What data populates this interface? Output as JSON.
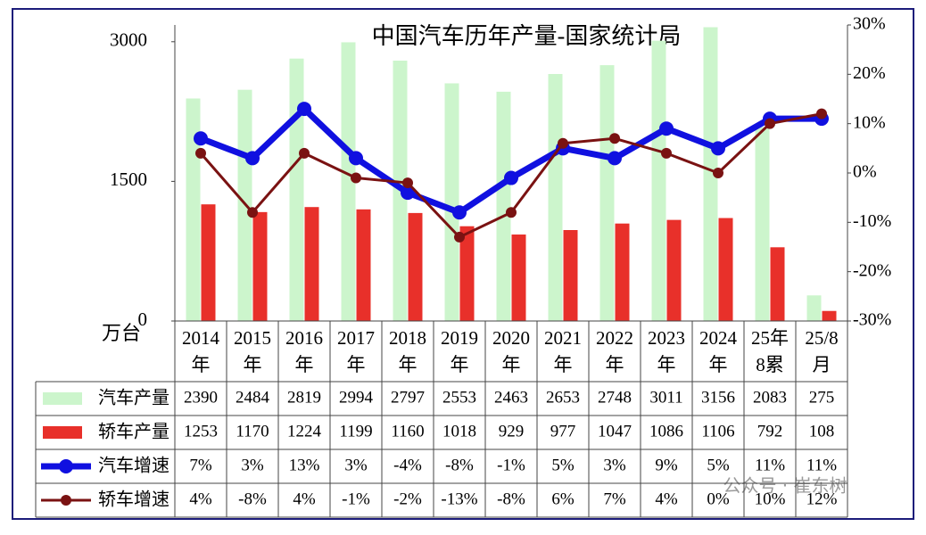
{
  "chart_data": {
    "type": "bar",
    "title": "中国汽车历年产量-国家统计局",
    "y_unit": "万台",
    "watermark": "公众号 · 崔东树",
    "categories": [
      [
        "2014",
        "年"
      ],
      [
        "2015",
        "年"
      ],
      [
        "2016",
        "年"
      ],
      [
        "2017",
        "年"
      ],
      [
        "2018",
        "年"
      ],
      [
        "2019",
        "年"
      ],
      [
        "2020",
        "年"
      ],
      [
        "2021",
        "年"
      ],
      [
        "2022",
        "年"
      ],
      [
        "2023",
        "年"
      ],
      [
        "2024",
        "年"
      ],
      [
        "25年",
        "8累"
      ],
      [
        "25/8",
        "月"
      ]
    ],
    "ylim": [
      0,
      3180
    ],
    "yticks": [
      0,
      1500,
      3000
    ],
    "y2lim": [
      -30,
      30
    ],
    "y2ticks": [
      {
        "value": -30,
        "label": "-30%"
      },
      {
        "value": -20,
        "label": "-20%"
      },
      {
        "value": -10,
        "label": "-10%"
      },
      {
        "value": 0,
        "label": "0%"
      },
      {
        "value": 10,
        "label": "10%"
      },
      {
        "value": 20,
        "label": "20%"
      },
      {
        "value": 30,
        "label": "30%"
      }
    ],
    "series": [
      {
        "name": "汽车产量",
        "type": "bar",
        "color": "#ccf5cc",
        "values": [
          2390,
          2484,
          2819,
          2994,
          2797,
          2553,
          2463,
          2653,
          2748,
          3011,
          3156,
          2083,
          275
        ]
      },
      {
        "name": "轿车产量",
        "type": "bar",
        "color": "#e8302a",
        "values": [
          1253,
          1170,
          1224,
          1199,
          1160,
          1018,
          929,
          977,
          1047,
          1086,
          1106,
          792,
          108
        ]
      },
      {
        "name": "汽车增速",
        "type": "line",
        "axis": "y2",
        "color": "#1010e0",
        "values": [
          7,
          3,
          13,
          3,
          -4,
          -8,
          -1,
          5,
          3,
          9,
          5,
          11,
          11
        ],
        "value_labels": [
          "7%",
          "3%",
          "13%",
          "3%",
          "-4%",
          "-8%",
          "-1%",
          "5%",
          "3%",
          "9%",
          "5%",
          "11%",
          "11%"
        ]
      },
      {
        "name": "轿车增速",
        "type": "line",
        "axis": "y2",
        "color": "#7a1212",
        "values": [
          4,
          -8,
          4,
          -1,
          -2,
          -13,
          -8,
          6,
          7,
          4,
          0,
          10,
          12
        ],
        "value_labels": [
          "4%",
          "-8%",
          "4%",
          "-1%",
          "-2%",
          "-13%",
          "-8%",
          "6%",
          "7%",
          "4%",
          "0%",
          "10%",
          "12%"
        ]
      }
    ]
  }
}
